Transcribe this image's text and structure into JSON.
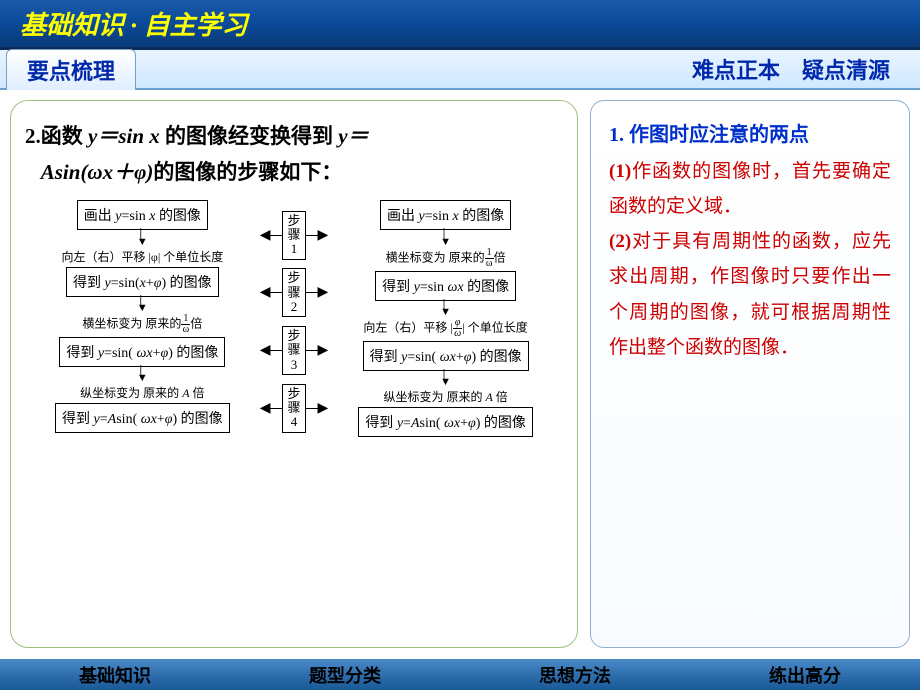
{
  "colors": {
    "header_gradient": [
      "#1a5aa8",
      "#0a3a78"
    ],
    "header_text": "#ffff00",
    "accent_blue": "#0028aa",
    "accent_red": "#cc0000",
    "left_border": "#a0c080",
    "right_border": "#90b0d0",
    "footer_gradient": [
      "#4a8ac8",
      "#1a5a98"
    ]
  },
  "header": {
    "title": "基础知识 · 自主学习"
  },
  "subheader": {
    "left_tab": "要点梳理",
    "right_text": "难点正本　疑点清源"
  },
  "left": {
    "intro_prefix": "2.",
    "intro_line1_a": "函数 ",
    "intro_line1_b": "y＝sin x",
    "intro_line1_c": " 的图像经变换得到 ",
    "intro_line1_d": "y＝",
    "intro_line2_a": "Asin(ωx＋φ)",
    "intro_line2_b": "的图像的步骤如下：",
    "flow": {
      "step_labels": [
        "步骤1",
        "步骤2",
        "步骤3",
        "步骤4"
      ],
      "left_col": {
        "box1": "画出 y=sin x 的图像",
        "t1": "向左（右）平移 |φ| 个单位长度",
        "box2": "得到 y=sin(x+φ) 的图像",
        "t2_a": "横坐标变为 原来的",
        "t2_frac_num": "1",
        "t2_frac_den": "ω",
        "t2_b": "倍",
        "box3": "得到 y=sin( ωx+φ) 的图像",
        "t3": "纵坐标变为 原来的 A 倍",
        "box4": "得到 y=Asin( ωx+φ) 的图像"
      },
      "right_col": {
        "box1": "画出 y=sin x 的图像",
        "t1_a": "横坐标变为 原来的",
        "t1_frac_num": "1",
        "t1_frac_den": "ω",
        "t1_b": "倍",
        "box2": "得到 y=sin ωx 的图像",
        "t2_a": "向左（右）平移 ",
        "t2_frac_num": "|φ|",
        "t2_frac_den": "ω",
        "t2_b": " 个单位长度",
        "box3": "得到 y=sin( ωx+φ) 的图像",
        "t3": "纵坐标变为 原来的 A 倍",
        "box4": "得到 y=Asin( ωx+φ) 的图像"
      }
    }
  },
  "right": {
    "heading": "1. 作图时应注意的两点",
    "p1_num": "(1)",
    "p1": "作函数的图像时，首先要确定函数的定义域．",
    "p2_num": "(2)",
    "p2": "对于具有周期性的函数，应先求出周期，作图像时只要作出一个周期的图像，就可根据周期性作出整个函数的图像．"
  },
  "footer": {
    "items": [
      "基础知识",
      "题型分类",
      "思想方法",
      "练出高分"
    ]
  }
}
